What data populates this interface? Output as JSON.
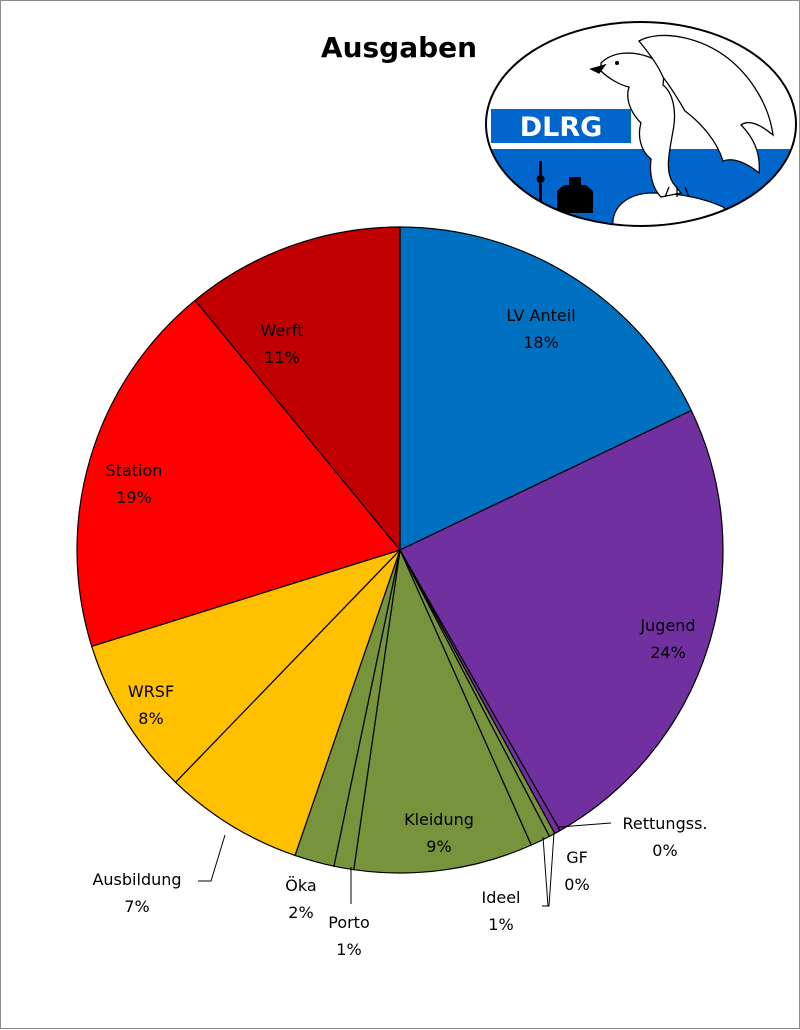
{
  "chart_data": {
    "type": "pie",
    "title": "Ausgaben",
    "start_angle_deg": 0,
    "direction": "clockwise",
    "slices": [
      {
        "label": "LV Anteil",
        "value": 18,
        "value_label": "18%",
        "color": "#0070C0"
      },
      {
        "label": "Jugend",
        "value": 24,
        "value_label": "24%",
        "color": "#7030A0"
      },
      {
        "label": "Rettungss.",
        "value": 0.3,
        "value_label": "0%",
        "color": "#7030A0"
      },
      {
        "label": "GF",
        "value": 0.3,
        "value_label": "0%",
        "color": "#77933C"
      },
      {
        "label": "Ideel",
        "value": 1,
        "value_label": "1%",
        "color": "#77933C"
      },
      {
        "label": "Kleidung",
        "value": 9,
        "value_label": "9%",
        "color": "#77933C"
      },
      {
        "label": "Porto",
        "value": 1,
        "value_label": "1%",
        "color": "#77933C"
      },
      {
        "label": "Öka",
        "value": 2,
        "value_label": "2%",
        "color": "#77933C"
      },
      {
        "label": "Ausbildung",
        "value": 7,
        "value_label": "7%",
        "color": "#FFC000"
      },
      {
        "label": "WRSF",
        "value": 8,
        "value_label": "8%",
        "color": "#FFC000"
      },
      {
        "label": "Station",
        "value": 19,
        "value_label": "19%",
        "color": "#FF0000"
      },
      {
        "label": "Werft",
        "value": 11,
        "value_label": "11%",
        "color": "#C00000"
      }
    ]
  },
  "logo": {
    "text": "DLRG",
    "name": "dlrg-eagle-logo",
    "colors": {
      "blue": "#0066CC",
      "white": "#ffffff",
      "outline": "#000000"
    }
  }
}
